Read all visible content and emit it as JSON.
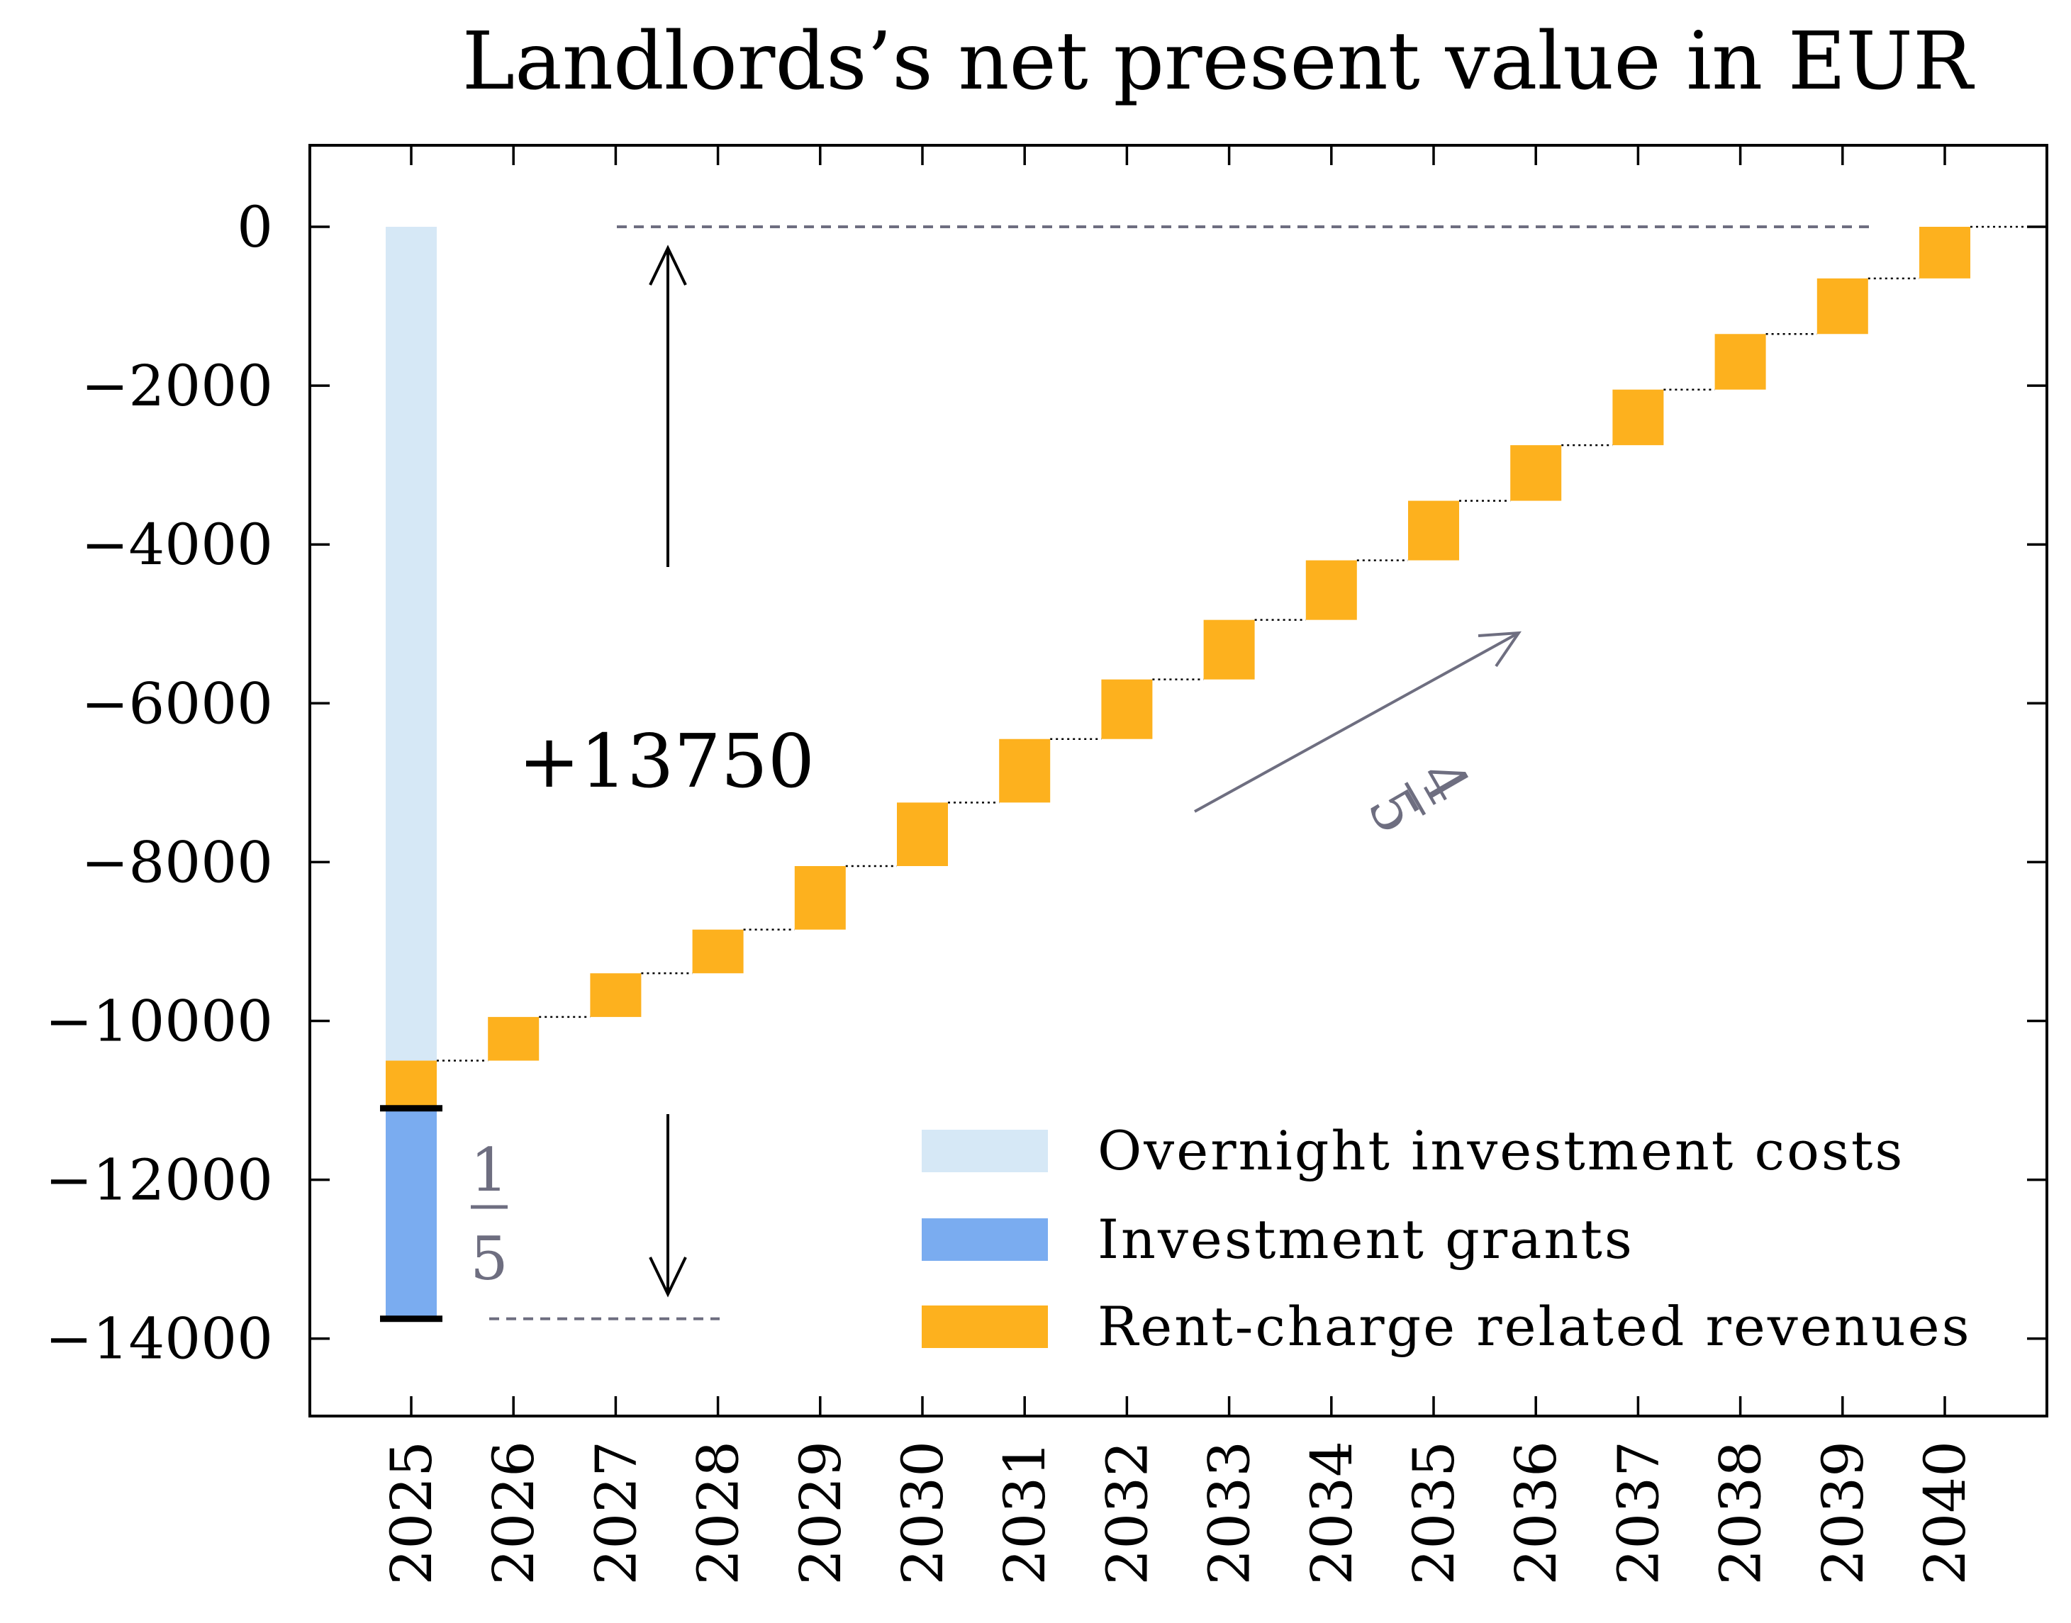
{
  "chart_data": {
    "type": "bar",
    "title": "Landlords’s net present value in EUR",
    "xlabel": "",
    "ylabel": "",
    "ylim": [
      -15000,
      1000
    ],
    "yticks": [
      0,
      -2000,
      -4000,
      -6000,
      -8000,
      -10000,
      -12000,
      -14000
    ],
    "ytick_labels": [
      "0",
      "−2000",
      "−4000",
      "−6000",
      "−8000",
      "−10000",
      "−12000",
      "−14000"
    ],
    "categories": [
      "2025",
      "2026",
      "2027",
      "2028",
      "2029",
      "2030",
      "2031",
      "2032",
      "2033",
      "2034",
      "2035",
      "2036",
      "2037",
      "2038",
      "2039",
      "2040"
    ],
    "legend_position": "bottom-right",
    "grid": false,
    "colors": {
      "overnight": "#d6e8f6",
      "grants": "#7aacf0",
      "revenues": "#fdb11e",
      "annotation": "#6e6e80"
    },
    "series": [
      {
        "name": "Overnight investment costs",
        "bars": [
          {
            "x": "2025",
            "bottom": -10500,
            "top": 0
          }
        ]
      },
      {
        "name": "Investment grants",
        "bars": [
          {
            "x": "2025",
            "bottom": -13750,
            "top": -11100
          }
        ]
      },
      {
        "name": "Rent-charge related revenues",
        "bars": [
          {
            "x": "2025",
            "bottom": -11100,
            "top": -10500
          },
          {
            "x": "2026",
            "bottom": -10500,
            "top": -9950
          },
          {
            "x": "2027",
            "bottom": -9950,
            "top": -9400
          },
          {
            "x": "2028",
            "bottom": -9400,
            "top": -8850
          },
          {
            "x": "2029",
            "bottom": -8850,
            "top": -8050
          },
          {
            "x": "2030",
            "bottom": -8050,
            "top": -7250
          },
          {
            "x": "2031",
            "bottom": -7250,
            "top": -6450
          },
          {
            "x": "2032",
            "bottom": -6450,
            "top": -5700
          },
          {
            "x": "2033",
            "bottom": -5700,
            "top": -4950
          },
          {
            "x": "2034",
            "bottom": -4950,
            "top": -4200
          },
          {
            "x": "2035",
            "bottom": -4200,
            "top": -3450
          },
          {
            "x": "2036",
            "bottom": -3450,
            "top": -2750
          },
          {
            "x": "2037",
            "bottom": -2750,
            "top": -2050
          },
          {
            "x": "2038",
            "bottom": -2050,
            "top": -1350
          },
          {
            "x": "2039",
            "bottom": -1350,
            "top": -650
          },
          {
            "x": "2040",
            "bottom": -650,
            "top": 0
          }
        ]
      }
    ],
    "annotations": {
      "total_label": "+13750",
      "grant_fraction": {
        "numerator": "1",
        "denominator": "5"
      },
      "revenue_fraction": {
        "numerator": "4",
        "denominator": "5"
      }
    }
  }
}
